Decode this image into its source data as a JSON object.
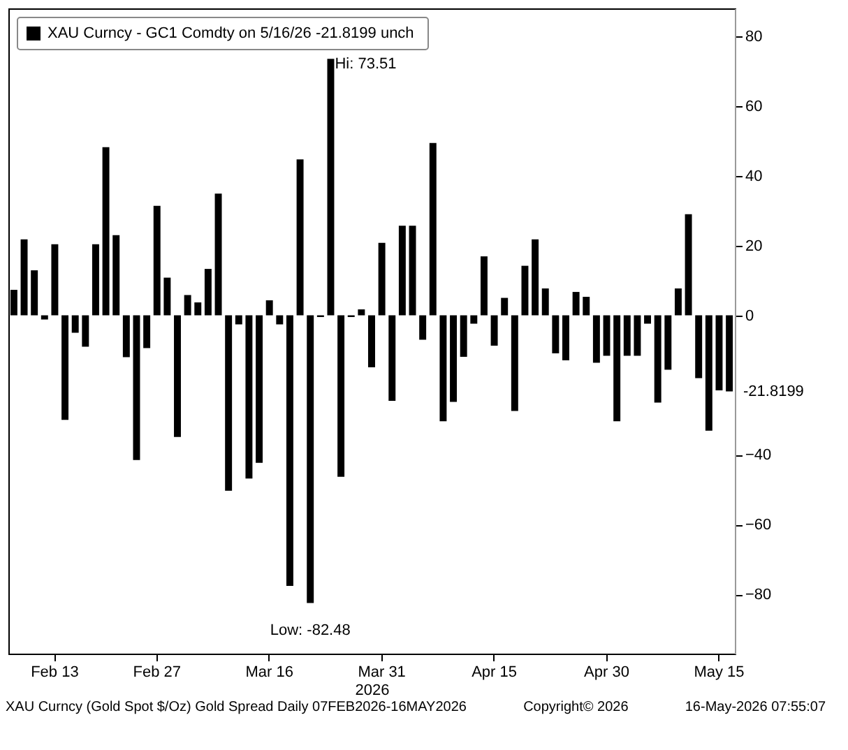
{
  "chart_data": {
    "type": "bar",
    "categories": [
      null,
      null,
      null,
      null,
      "Feb 13",
      null,
      null,
      null,
      null,
      null,
      null,
      null,
      null,
      null,
      "Feb 27",
      null,
      null,
      null,
      null,
      null,
      null,
      null,
      null,
      null,
      null,
      "Mar 16",
      null,
      null,
      null,
      null,
      null,
      null,
      null,
      null,
      null,
      null,
      "Mar 31",
      null,
      null,
      null,
      null,
      null,
      null,
      null,
      null,
      null,
      null,
      "Apr 15",
      null,
      null,
      null,
      null,
      null,
      null,
      null,
      null,
      null,
      null,
      "Apr 30",
      null,
      null,
      null,
      null,
      null,
      null,
      null,
      null,
      null,
      null,
      "May 15",
      null
    ],
    "xlabel": "2026",
    "series": [
      {
        "name": "XAU Curncy - GC1 Comdty on 5/16/26 -21.8199  unch",
        "color": "#000000",
        "values": [
          7.3,
          21.8,
          12.9,
          -1.2,
          20.4,
          -30,
          -5,
          -9,
          20.4,
          48.2,
          23,
          -12,
          -41.5,
          -9.4,
          31.4,
          10.8,
          -34.9,
          5.8,
          3.7,
          13.3,
          34.9,
          -50.3,
          -2.6,
          -46.8,
          -42.3,
          4.3,
          -2.6,
          -77.6,
          44.7,
          -82.48,
          -0.5,
          73.51,
          -46.3,
          -0.5,
          1.7,
          -14.9,
          20.8,
          -24.5,
          25.7,
          25.7,
          -7,
          49.4,
          -30.4,
          -24.8,
          -11.9,
          -2.4,
          16.9,
          -8.7,
          5,
          -27.4,
          14.2,
          21.8,
          7.7,
          -10.9,
          -12.9,
          6.7,
          5.3,
          -13.6,
          -11.6,
          -30.4,
          -11.6,
          -11.6,
          -2.4,
          -25,
          -15.6,
          7.7,
          29,
          -18,
          -33.1,
          -21.5,
          -21.8199
        ]
      }
    ],
    "ylim": [
      -97,
      88
    ],
    "yticks": [
      -80,
      -60,
      -40,
      0,
      20,
      40,
      60,
      80
    ],
    "legend": "top left",
    "annotations": [
      "Hi: 73.51",
      "Low: -82.48",
      "-21.8199",
      "XAU Curncy (Gold Spot  $/Oz) Gold Spread Daily 07FEB2026-16MAY2026",
      "Copyright© 2026",
      "16-May-2026 07:55:07"
    ]
  }
}
